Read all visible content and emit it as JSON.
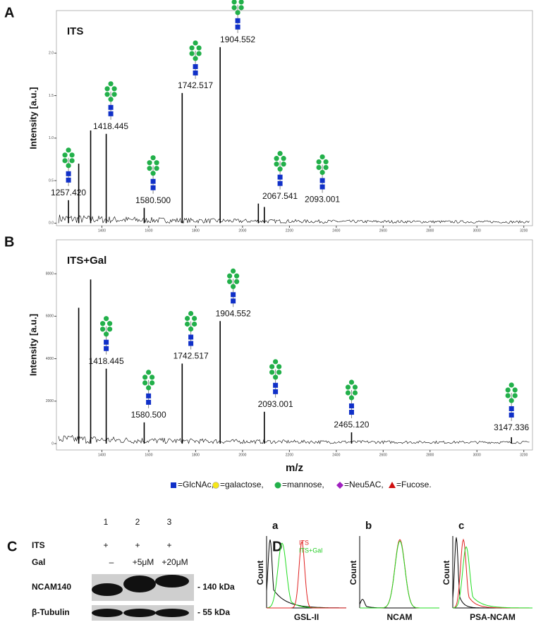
{
  "chart_data": [
    {
      "type": "spectrum",
      "panel": "A",
      "title": "ITS",
      "y_label": "Intensity [a.u.]",
      "color": "#000000",
      "x": [
        1257.42,
        1301,
        1352,
        1418.445,
        1580.5,
        1742.517,
        1904.552,
        2067.541,
        2093.001
      ],
      "values": [
        0.27,
        0.7,
        1.09,
        1.05,
        0.18,
        1.53,
        2.07,
        0.23,
        0.19
      ],
      "labels": [
        "1257.420",
        null,
        null,
        "1418.445",
        "1580.500",
        "1742.517",
        "1904.552",
        "2067.541",
        "2093.001"
      ],
      "xlim": [
        1206,
        3237
      ],
      "ylim": [
        -0.03,
        2.5
      ],
      "xticks": [
        1400,
        1600,
        1800,
        2000,
        2200,
        2400,
        2600,
        2800,
        3000,
        3200
      ],
      "yticks": [
        {
          "value": 0,
          "label": "0.0"
        },
        {
          "value": 0.5,
          "label": "0.5"
        },
        {
          "value": 1,
          "label": "1.0"
        },
        {
          "value": 1.5,
          "label": "1.5"
        },
        {
          "value": 2,
          "label": "2.0"
        }
      ]
    },
    {
      "type": "spectrum",
      "panel": "B",
      "title": "ITS+Gal",
      "y_label": "Intensity [a.u.]",
      "x_label": "m/z",
      "color": "#000000",
      "x": [
        1301,
        1352,
        1418.445,
        1580.5,
        1742.517,
        1904.552,
        2093.001,
        2465.12,
        3147.336
      ],
      "values": [
        6400,
        7730,
        3530,
        1000,
        3770,
        5770,
        1500,
        530,
        300
      ],
      "labels": [
        null,
        null,
        "1418.445",
        "1580.500",
        "1742.517",
        "1904.552",
        "2093.001",
        "2465.120",
        "3147.336"
      ],
      "xlim": [
        1206,
        3237
      ],
      "ylim": [
        -300,
        9600
      ],
      "xticks": [
        1400,
        1600,
        1800,
        2000,
        2200,
        2400,
        2600,
        2800,
        3000,
        3200
      ],
      "yticks": [
        0,
        2000,
        4000,
        6000,
        8000
      ]
    }
  ],
  "legend": {
    "items": [
      "=GlcNAc,",
      "=galactose,",
      "=mannose,",
      "=Neu5AC,",
      "=Fucose."
    ]
  },
  "blot": {
    "panel": "C",
    "lanes": [
      "1",
      "2",
      "3"
    ],
    "rows": [
      {
        "label": "ITS",
        "cells": [
          "+",
          "+",
          "+"
        ]
      },
      {
        "label": "Gal",
        "cells": [
          "–",
          "+5μM",
          "+20μM"
        ]
      }
    ],
    "bands": [
      {
        "label": "NCAM140",
        "marker": "- 140 kDa"
      },
      {
        "label": "β-Tubulin",
        "marker": "- 55 kDa"
      }
    ]
  },
  "flow": {
    "panel": "D",
    "y_label": "Count",
    "legend": [
      "ITS",
      "ITS+Gal"
    ],
    "plots": [
      {
        "letter": "a",
        "x_label": "GSL-II"
      },
      {
        "letter": "b",
        "x_label": "NCAM"
      },
      {
        "letter": "c",
        "x_label": "PSA-NCAM"
      }
    ]
  }
}
